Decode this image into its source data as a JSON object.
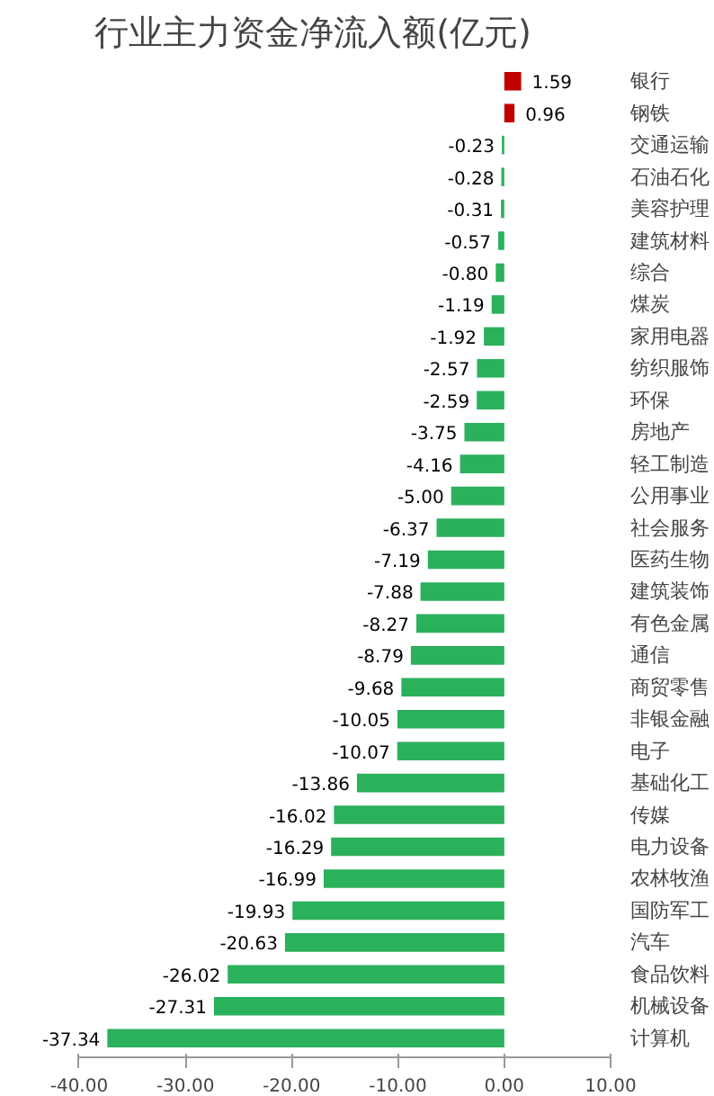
{
  "chart_data": {
    "type": "bar",
    "orientation": "horizontal",
    "title": "行业主力资金净流入额(亿元)",
    "categories": [
      "银行",
      "钢铁",
      "交通运输",
      "石油石化",
      "美容护理",
      "建筑材料",
      "综合",
      "煤炭",
      "家用电器",
      "纺织服饰",
      "环保",
      "房地产",
      "轻工制造",
      "公用事业",
      "社会服务",
      "医药生物",
      "建筑装饰",
      "有色金属",
      "通信",
      "商贸零售",
      "非银金融",
      "电子",
      "基础化工",
      "传媒",
      "电力设备",
      "农林牧渔",
      "国防军工",
      "汽车",
      "食品饮料",
      "机械设备",
      "计算机"
    ],
    "values": [
      1.59,
      0.96,
      -0.23,
      -0.28,
      -0.31,
      -0.57,
      -0.8,
      -1.19,
      -1.92,
      -2.57,
      -2.59,
      -3.75,
      -4.16,
      -5.0,
      -6.37,
      -7.19,
      -7.88,
      -8.27,
      -8.79,
      -9.68,
      -10.05,
      -10.07,
      -13.86,
      -16.02,
      -16.29,
      -16.99,
      -19.93,
      -20.63,
      -26.02,
      -27.31,
      -37.34
    ],
    "colors": [
      "#c00000",
      "#c00000",
      "#2bb05c",
      "#2bb05c",
      "#2bb05c",
      "#2bb05c",
      "#2bb05c",
      "#2bb05c",
      "#2bb05c",
      "#2bb05c",
      "#2bb05c",
      "#2bb05c",
      "#2bb05c",
      "#2bb05c",
      "#2bb05c",
      "#2bb05c",
      "#2bb05c",
      "#2bb05c",
      "#2bb05c",
      "#2bb05c",
      "#2bb05c",
      "#2bb05c",
      "#2bb05c",
      "#2bb05c",
      "#2bb05c",
      "#2bb05c",
      "#2bb05c",
      "#2bb05c",
      "#2bb05c",
      "#2bb05c",
      "#2bb05c"
    ],
    "xlim": [
      -40,
      10
    ],
    "xticks": [
      {
        "value": -40,
        "label": "-40.00"
      },
      {
        "value": -30,
        "label": "-30.00"
      },
      {
        "value": -20,
        "label": "-20.00"
      },
      {
        "value": -10,
        "label": "-10.00"
      },
      {
        "value": 0,
        "label": "0.00"
      },
      {
        "value": 10,
        "label": "10.00"
      }
    ],
    "value_labels": [
      "1.59",
      "0.96",
      "-0.23",
      "-0.28",
      "-0.31",
      "-0.57",
      "-0.80",
      "-1.19",
      "-1.92",
      "-2.57",
      "-2.59",
      "-3.75",
      "-4.16",
      "-5.00",
      "-6.37",
      "-7.19",
      "-7.88",
      "-8.27",
      "-8.79",
      "-9.68",
      "-10.05",
      "-10.07",
      "-13.86",
      "-16.02",
      "-16.29",
      "-16.99",
      "-19.93",
      "-20.63",
      "-26.02",
      "-27.31",
      "-37.34"
    ],
    "grid": false
  }
}
